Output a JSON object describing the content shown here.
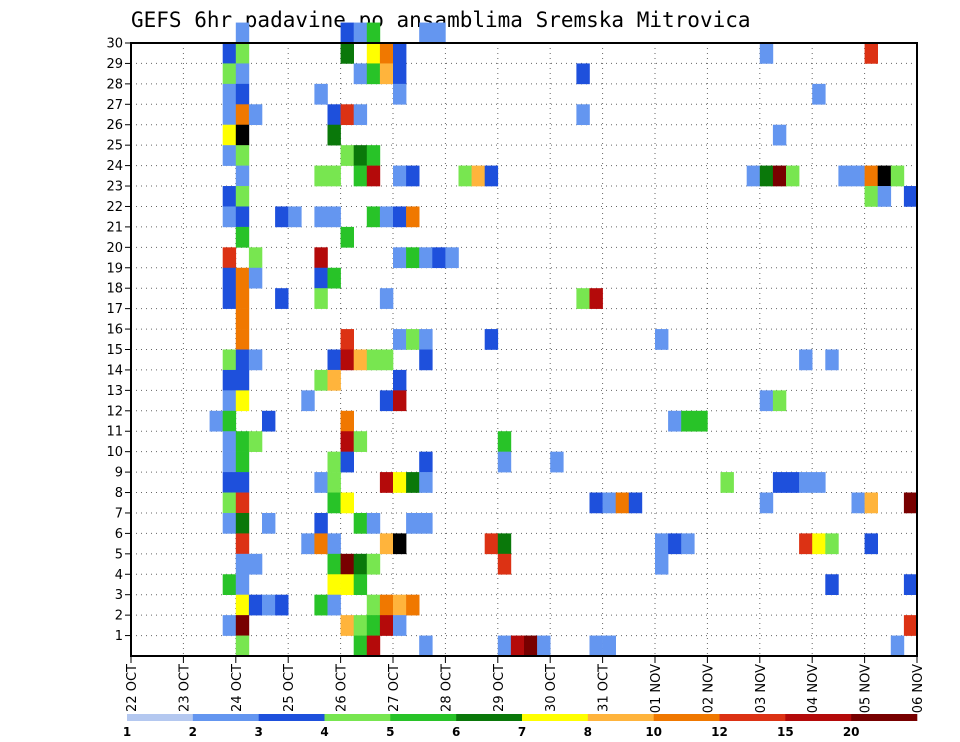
{
  "chart_data": {
    "type": "heatmap",
    "title": "GEFS 6hr padavine po ansamblima Sremska Mitrovica",
    "xlabel": "",
    "ylabel": "",
    "x_ticks": [
      "22 OCT",
      "23 OCT",
      "24 OCT",
      "25 OCT",
      "26 OCT",
      "27 OCT",
      "28 OCT",
      "29 OCT",
      "30 OCT",
      "31 OCT",
      "01 NOV",
      "02 NOV",
      "03 NOV",
      "04 NOV",
      "05 NOV",
      "06 NOV"
    ],
    "y_ticks": [
      1,
      2,
      3,
      4,
      5,
      6,
      7,
      8,
      9,
      10,
      11,
      12,
      13,
      14,
      15,
      16,
      17,
      18,
      19,
      20,
      21,
      22,
      23,
      24,
      25,
      26,
      27,
      28,
      29,
      30
    ],
    "x_range": [
      0,
      60
    ],
    "y_range": [
      0,
      30
    ],
    "grid": true,
    "colorbar": {
      "placement": "bottom",
      "levels": [
        "1",
        "2",
        "3",
        "4",
        "5",
        "6",
        "7",
        "8",
        "10",
        "12",
        "15",
        "20"
      ],
      "colors": [
        "#b4c8f0",
        "#6496f0",
        "#1e50dc",
        "#78e650",
        "#28c328",
        "#0a780a",
        "#ffff00",
        "#ffb43c",
        "#f07800",
        "#dc3214",
        "#b40a0a",
        "#780000"
      ]
    },
    "cells": [
      [
        8,
        30,
        1
      ],
      [
        16,
        30,
        2
      ],
      [
        17,
        30,
        1
      ],
      [
        18,
        30,
        4
      ],
      [
        22,
        30,
        1
      ],
      [
        23,
        30,
        1
      ],
      [
        7,
        29,
        2
      ],
      [
        8,
        29,
        3
      ],
      [
        16,
        29,
        5
      ],
      [
        18,
        29,
        6
      ],
      [
        19,
        29,
        8
      ],
      [
        20,
        29,
        2
      ],
      [
        48,
        29,
        1
      ],
      [
        56,
        29,
        9
      ],
      [
        7,
        28,
        3
      ],
      [
        8,
        28,
        1
      ],
      [
        17,
        28,
        1
      ],
      [
        18,
        28,
        4
      ],
      [
        19,
        28,
        7
      ],
      [
        20,
        28,
        2
      ],
      [
        34,
        28,
        2
      ],
      [
        7,
        27,
        1
      ],
      [
        8,
        27,
        2
      ],
      [
        14,
        27,
        1
      ],
      [
        20,
        27,
        1
      ],
      [
        52,
        27,
        1
      ],
      [
        7,
        26,
        1
      ],
      [
        8,
        26,
        8
      ],
      [
        9,
        26,
        1
      ],
      [
        15,
        26,
        2
      ],
      [
        16,
        26,
        9
      ],
      [
        17,
        26,
        1
      ],
      [
        34,
        26,
        1
      ],
      [
        7,
        25,
        6
      ],
      [
        8,
        25,
        12
      ],
      [
        15,
        25,
        5
      ],
      [
        49,
        25,
        1
      ],
      [
        7,
        24,
        1
      ],
      [
        8,
        24,
        3
      ],
      [
        16,
        24,
        3
      ],
      [
        17,
        24,
        5
      ],
      [
        18,
        24,
        4
      ],
      [
        8,
        23,
        1
      ],
      [
        14,
        23,
        3
      ],
      [
        15,
        23,
        3
      ],
      [
        17,
        23,
        4
      ],
      [
        18,
        23,
        10
      ],
      [
        20,
        23,
        1
      ],
      [
        21,
        23,
        2
      ],
      [
        25,
        23,
        3
      ],
      [
        26,
        23,
        7
      ],
      [
        27,
        23,
        2
      ],
      [
        47,
        23,
        1
      ],
      [
        48,
        23,
        5
      ],
      [
        49,
        23,
        11
      ],
      [
        50,
        23,
        3
      ],
      [
        54,
        23,
        1
      ],
      [
        55,
        23,
        1
      ],
      [
        56,
        23,
        8
      ],
      [
        57,
        23,
        12
      ],
      [
        58,
        23,
        3
      ],
      [
        7,
        22,
        2
      ],
      [
        8,
        22,
        3
      ],
      [
        56,
        22,
        3
      ],
      [
        57,
        22,
        1
      ],
      [
        59,
        22,
        2
      ],
      [
        7,
        21,
        1
      ],
      [
        8,
        21,
        2
      ],
      [
        11,
        21,
        2
      ],
      [
        12,
        21,
        1
      ],
      [
        14,
        21,
        1
      ],
      [
        15,
        21,
        1
      ],
      [
        18,
        21,
        4
      ],
      [
        19,
        21,
        1
      ],
      [
        20,
        21,
        2
      ],
      [
        21,
        21,
        8
      ],
      [
        8,
        20,
        4
      ],
      [
        16,
        20,
        4
      ],
      [
        7,
        19,
        9
      ],
      [
        9,
        19,
        3
      ],
      [
        14,
        19,
        10
      ],
      [
        20,
        19,
        1
      ],
      [
        21,
        19,
        4
      ],
      [
        22,
        19,
        1
      ],
      [
        23,
        19,
        2
      ],
      [
        24,
        19,
        1
      ],
      [
        7,
        18,
        2
      ],
      [
        8,
        18,
        8
      ],
      [
        9,
        18,
        1
      ],
      [
        14,
        18,
        2
      ],
      [
        15,
        18,
        4
      ],
      [
        7,
        17,
        2
      ],
      [
        8,
        17,
        8
      ],
      [
        11,
        17,
        2
      ],
      [
        14,
        17,
        3
      ],
      [
        19,
        17,
        1
      ],
      [
        34,
        17,
        3
      ],
      [
        35,
        17,
        10
      ],
      [
        8,
        16,
        8
      ],
      [
        8,
        15,
        8
      ],
      [
        16,
        15,
        9
      ],
      [
        20,
        15,
        1
      ],
      [
        21,
        15,
        3
      ],
      [
        22,
        15,
        1
      ],
      [
        27,
        15,
        2
      ],
      [
        40,
        15,
        1
      ],
      [
        7,
        14,
        3
      ],
      [
        8,
        14,
        2
      ],
      [
        9,
        14,
        1
      ],
      [
        15,
        14,
        2
      ],
      [
        16,
        14,
        10
      ],
      [
        17,
        14,
        7
      ],
      [
        18,
        14,
        3
      ],
      [
        19,
        14,
        3
      ],
      [
        22,
        14,
        2
      ],
      [
        51,
        14,
        1
      ],
      [
        53,
        14,
        1
      ],
      [
        7,
        13,
        2
      ],
      [
        8,
        13,
        2
      ],
      [
        14,
        13,
        3
      ],
      [
        15,
        13,
        7
      ],
      [
        20,
        13,
        2
      ],
      [
        7,
        12,
        1
      ],
      [
        8,
        12,
        6
      ],
      [
        13,
        12,
        1
      ],
      [
        19,
        12,
        2
      ],
      [
        20,
        12,
        10
      ],
      [
        48,
        12,
        1
      ],
      [
        49,
        12,
        3
      ],
      [
        6,
        11,
        1
      ],
      [
        7,
        11,
        4
      ],
      [
        10,
        11,
        2
      ],
      [
        16,
        11,
        8
      ],
      [
        41,
        11,
        1
      ],
      [
        42,
        11,
        4
      ],
      [
        43,
        11,
        4
      ],
      [
        7,
        10,
        1
      ],
      [
        8,
        10,
        4
      ],
      [
        9,
        10,
        3
      ],
      [
        16,
        10,
        10
      ],
      [
        17,
        10,
        3
      ],
      [
        28,
        10,
        4
      ],
      [
        7,
        9,
        1
      ],
      [
        8,
        9,
        4
      ],
      [
        15,
        9,
        3
      ],
      [
        16,
        9,
        2
      ],
      [
        22,
        9,
        2
      ],
      [
        28,
        9,
        1
      ],
      [
        32,
        9,
        1
      ],
      [
        7,
        8,
        2
      ],
      [
        8,
        8,
        2
      ],
      [
        14,
        8,
        1
      ],
      [
        15,
        8,
        3
      ],
      [
        19,
        8,
        10
      ],
      [
        20,
        8,
        6
      ],
      [
        21,
        8,
        5
      ],
      [
        22,
        8,
        1
      ],
      [
        45,
        8,
        3
      ],
      [
        49,
        8,
        2
      ],
      [
        50,
        8,
        2
      ],
      [
        51,
        8,
        1
      ],
      [
        52,
        8,
        1
      ],
      [
        7,
        7,
        3
      ],
      [
        8,
        7,
        9
      ],
      [
        15,
        7,
        4
      ],
      [
        16,
        7,
        6
      ],
      [
        35,
        7,
        2
      ],
      [
        36,
        7,
        1
      ],
      [
        37,
        7,
        8
      ],
      [
        38,
        7,
        2
      ],
      [
        48,
        7,
        1
      ],
      [
        55,
        7,
        1
      ],
      [
        56,
        7,
        7
      ],
      [
        59,
        7,
        11
      ],
      [
        7,
        6,
        1
      ],
      [
        8,
        6,
        5
      ],
      [
        10,
        6,
        1
      ],
      [
        14,
        6,
        2
      ],
      [
        17,
        6,
        4
      ],
      [
        18,
        6,
        1
      ],
      [
        21,
        6,
        1
      ],
      [
        22,
        6,
        1
      ],
      [
        8,
        5,
        9
      ],
      [
        13,
        5,
        1
      ],
      [
        14,
        5,
        8
      ],
      [
        15,
        5,
        1
      ],
      [
        19,
        5,
        7
      ],
      [
        20,
        5,
        12
      ],
      [
        27,
        5,
        9
      ],
      [
        28,
        5,
        5
      ],
      [
        40,
        5,
        1
      ],
      [
        41,
        5,
        2
      ],
      [
        42,
        5,
        1
      ],
      [
        51,
        5,
        9
      ],
      [
        52,
        5,
        6
      ],
      [
        53,
        5,
        3
      ],
      [
        56,
        5,
        2
      ],
      [
        8,
        4,
        1
      ],
      [
        9,
        4,
        1
      ],
      [
        15,
        4,
        4
      ],
      [
        16,
        4,
        11
      ],
      [
        17,
        4,
        5
      ],
      [
        18,
        4,
        3
      ],
      [
        28,
        4,
        9
      ],
      [
        40,
        4,
        1
      ],
      [
        7,
        3,
        4
      ],
      [
        8,
        3,
        1
      ],
      [
        15,
        3,
        6
      ],
      [
        16,
        3,
        6
      ],
      [
        17,
        3,
        4
      ],
      [
        53,
        3,
        2
      ],
      [
        59,
        3,
        2
      ],
      [
        8,
        2,
        6
      ],
      [
        9,
        2,
        2
      ],
      [
        10,
        2,
        1
      ],
      [
        11,
        2,
        2
      ],
      [
        14,
        2,
        4
      ],
      [
        15,
        2,
        1
      ],
      [
        18,
        2,
        3
      ],
      [
        19,
        2,
        8
      ],
      [
        20,
        2,
        7
      ],
      [
        21,
        2,
        8
      ],
      [
        7,
        1,
        1
      ],
      [
        8,
        1,
        11
      ],
      [
        16,
        1,
        7
      ],
      [
        17,
        1,
        3
      ],
      [
        18,
        1,
        4
      ],
      [
        19,
        1,
        10
      ],
      [
        20,
        1,
        1
      ],
      [
        59,
        1,
        9
      ],
      [
        8,
        0,
        3
      ],
      [
        17,
        0,
        4
      ],
      [
        18,
        0,
        10
      ],
      [
        22,
        0,
        1
      ],
      [
        28,
        0,
        1
      ],
      [
        29,
        0,
        10
      ],
      [
        30,
        0,
        11
      ],
      [
        31,
        0,
        1
      ],
      [
        35,
        0,
        1
      ],
      [
        36,
        0,
        1
      ],
      [
        58,
        0,
        1
      ]
    ]
  }
}
